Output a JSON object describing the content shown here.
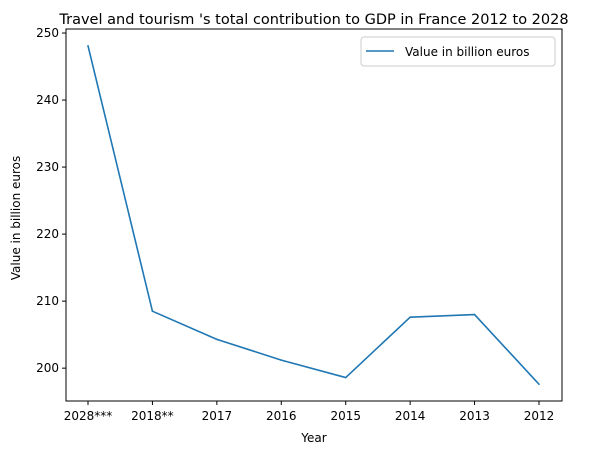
{
  "chart_data": {
    "type": "line",
    "title": "Travel and tourism 's total contribution to GDP in France 2012 to 2028",
    "xlabel": "Year",
    "ylabel": "Value in billion euros",
    "categories": [
      "2028***",
      "2018**",
      "2017",
      "2016",
      "2015",
      "2014",
      "2013",
      "2012"
    ],
    "series": [
      {
        "name": "Value in billion euros",
        "color": "#1f77b4",
        "values": [
          248.1,
          208.5,
          204.3,
          201.2,
          198.6,
          207.6,
          208.0,
          197.6
        ]
      }
    ],
    "ylim": [
      195.1,
      250.6
    ],
    "yticks": [
      200,
      210,
      220,
      230,
      240,
      250
    ],
    "grid": false,
    "legend_position": "top-right"
  }
}
